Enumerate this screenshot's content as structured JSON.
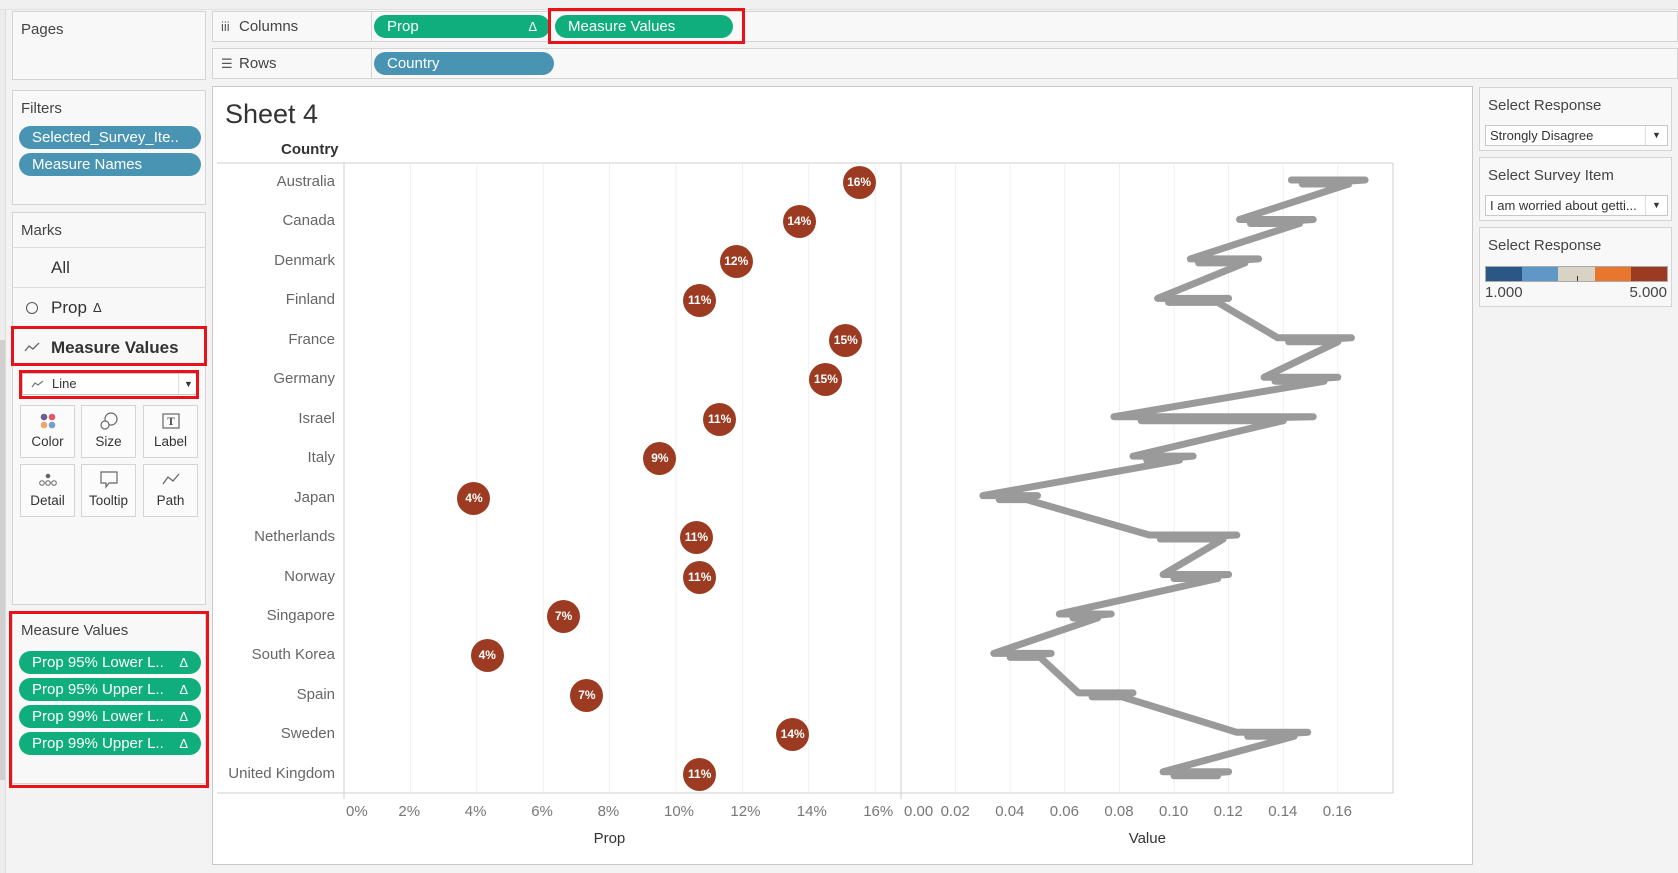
{
  "pages": {
    "title": "Pages"
  },
  "filters": {
    "title": "Filters",
    "pills": [
      "Selected_Survey_Ite..",
      "Measure Names"
    ]
  },
  "marks": {
    "title": "Marks",
    "rows": [
      {
        "label": "All",
        "icon": ""
      },
      {
        "label": "Prop",
        "icon": "circle-icon",
        "delta": "Δ"
      },
      {
        "label": "Measure Values",
        "icon": "line-icon"
      }
    ],
    "mark_type": "Line",
    "buttons": [
      {
        "label": "Color",
        "icon": "color-icon"
      },
      {
        "label": "Size",
        "icon": "size-icon"
      },
      {
        "label": "Label",
        "icon": "label-icon"
      },
      {
        "label": "Detail",
        "icon": "detail-icon"
      },
      {
        "label": "Tooltip",
        "icon": "tooltip-icon"
      },
      {
        "label": "Path",
        "icon": "path-icon"
      }
    ]
  },
  "measure_values": {
    "title": "Measure Values",
    "pills": [
      "Prop 95% Lower L..",
      "Prop 95% Upper L..",
      "Prop 99% Lower L..",
      "Prop 99% Upper L.."
    ],
    "delta": "Δ"
  },
  "shelves": {
    "columns_label": "Columns",
    "columns_pills": [
      {
        "label": "Prop",
        "delta": "Δ"
      },
      {
        "label": "Measure Values"
      }
    ],
    "rows_label": "Rows",
    "rows_pills": [
      {
        "label": "Country"
      }
    ]
  },
  "sheet": {
    "title": "Sheet 4",
    "row_header": "Country"
  },
  "right_panel": {
    "select_response": {
      "title": "Select Response",
      "value": "Strongly Disagree"
    },
    "select_survey_item": {
      "title": "Select Survey Item",
      "value": "I am worried about getti..."
    },
    "color_legend": {
      "title": "Select Response",
      "min": "1.000",
      "max": "5.000",
      "colors": [
        "#2a5783",
        "#5f98c6",
        "#d8d3c5",
        "#e8762c",
        "#9c3b21"
      ]
    }
  },
  "colors": {
    "pill_green": "#0fae7c",
    "pill_blue": "#4a94b3",
    "dot": "#9c3b21",
    "line": "#9a9a9a",
    "highlight": "#e8121a"
  },
  "chart_data": [
    {
      "type": "scatter",
      "title": "Sheet 4",
      "xlabel": "Prop",
      "ylabel": "Country",
      "xlim": [
        0,
        0.16
      ],
      "x_ticks": [
        "0%",
        "2%",
        "4%",
        "6%",
        "8%",
        "10%",
        "12%",
        "14%",
        "16%"
      ],
      "categories": [
        "Australia",
        "Canada",
        "Denmark",
        "Finland",
        "France",
        "Germany",
        "Israel",
        "Italy",
        "Japan",
        "Netherlands",
        "Norway",
        "Singapore",
        "South Korea",
        "Spain",
        "Sweden",
        "United Kingdom"
      ],
      "values": [
        0.155,
        0.137,
        0.118,
        0.107,
        0.151,
        0.145,
        0.113,
        0.095,
        0.039,
        0.106,
        0.107,
        0.066,
        0.043,
        0.073,
        0.135,
        0.107
      ],
      "labels": [
        "16%",
        "14%",
        "12%",
        "11%",
        "15%",
        "15%",
        "11%",
        "9%",
        "4%",
        "11%",
        "11%",
        "7%",
        "4%",
        "7%",
        "14%",
        "11%"
      ]
    },
    {
      "type": "line",
      "xlabel": "Value",
      "ylabel": "Country",
      "xlim": [
        0,
        0.18
      ],
      "x_ticks": [
        "0.00",
        "0.02",
        "0.04",
        "0.06",
        "0.08",
        "0.10",
        "0.12",
        "0.14",
        "0.16"
      ],
      "categories": [
        "Australia",
        "Canada",
        "Denmark",
        "Finland",
        "France",
        "Germany",
        "Israel",
        "Italy",
        "Japan",
        "Netherlands",
        "Norway",
        "Singapore",
        "South Korea",
        "Spain",
        "Sweden",
        "United Kingdom"
      ],
      "series": [
        {
          "name": "Prop 99% Lower L..",
          "values": [
            0.143,
            0.124,
            0.106,
            0.094,
            0.138,
            0.133,
            0.078,
            0.085,
            0.03,
            0.091,
            0.096,
            0.058,
            0.034,
            0.065,
            0.123,
            0.096
          ]
        },
        {
          "name": "Prop 95% Lower L..",
          "values": [
            0.147,
            0.128,
            0.109,
            0.098,
            0.142,
            0.137,
            0.088,
            0.09,
            0.036,
            0.095,
            0.1,
            0.063,
            0.04,
            0.07,
            0.127,
            0.1
          ]
        },
        {
          "name": "Prop 95% Upper L..",
          "values": [
            0.164,
            0.146,
            0.126,
            0.116,
            0.16,
            0.155,
            0.14,
            0.102,
            0.046,
            0.118,
            0.116,
            0.072,
            0.051,
            0.081,
            0.144,
            0.116
          ]
        },
        {
          "name": "Prop 99% Upper L..",
          "values": [
            0.17,
            0.151,
            0.131,
            0.12,
            0.165,
            0.16,
            0.151,
            0.107,
            0.05,
            0.123,
            0.12,
            0.077,
            0.055,
            0.085,
            0.149,
            0.12
          ]
        }
      ]
    }
  ]
}
